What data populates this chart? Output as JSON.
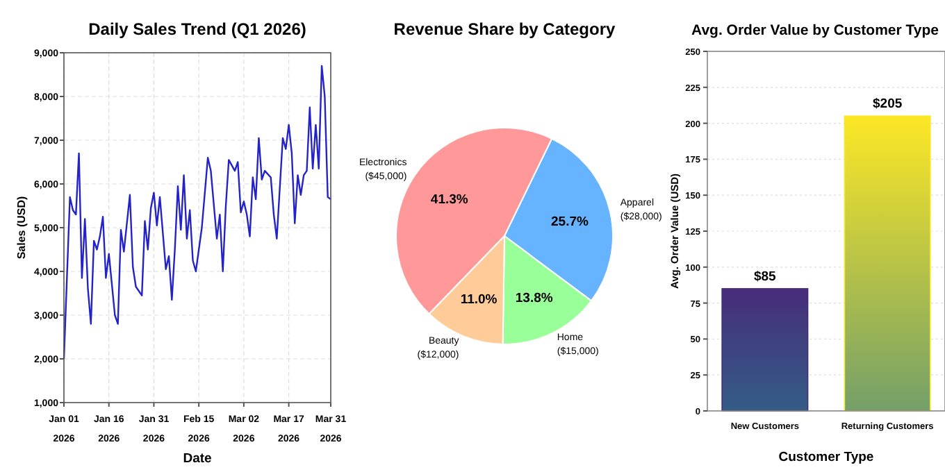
{
  "chart_data": [
    {
      "type": "line",
      "title": "Daily Sales Trend (Q1 2026)",
      "xlabel": "Date",
      "ylabel": "Sales (USD)",
      "grid": true,
      "xlim": [
        "2026-01-01",
        "2026-03-31"
      ],
      "xticks": [
        {
          "value": "2026-01-01",
          "label": "Jan 01\n2026"
        },
        {
          "value": "2026-01-16",
          "label": "Jan 16\n2026"
        },
        {
          "value": "2026-01-31",
          "label": "Jan 31\n2026"
        },
        {
          "value": "2026-02-15",
          "label": "Feb 15\n2026"
        },
        {
          "value": "2026-03-02",
          "label": "Mar 02\n2026"
        },
        {
          "value": "2026-03-17",
          "label": "Mar 17\n2026"
        },
        {
          "value": "2026-03-31",
          "label": "Mar 31\n2026"
        }
      ],
      "ylim": [
        1000,
        9000
      ],
      "yticks": [
        {
          "value": 1000,
          "label": "1,000"
        },
        {
          "value": 2000,
          "label": "2,000"
        },
        {
          "value": 3000,
          "label": "3,000"
        },
        {
          "value": 4000,
          "label": "4,000"
        },
        {
          "value": 5000,
          "label": "5,000"
        },
        {
          "value": 6000,
          "label": "6,000"
        },
        {
          "value": 7000,
          "label": "7,000"
        },
        {
          "value": 8000,
          "label": "8,000"
        },
        {
          "value": 9000,
          "label": "9,000"
        }
      ],
      "series": [
        {
          "color": "#2323c8",
          "x": [
            "2026-01-01",
            "2026-01-03",
            "2026-01-04",
            "2026-01-05",
            "2026-01-06",
            "2026-01-07",
            "2026-01-08",
            "2026-01-09",
            "2026-01-10",
            "2026-01-11",
            "2026-01-12",
            "2026-01-13",
            "2026-01-14",
            "2026-01-15",
            "2026-01-16",
            "2026-01-18",
            "2026-01-19",
            "2026-01-20",
            "2026-01-21",
            "2026-01-23",
            "2026-01-24",
            "2026-01-25",
            "2026-01-27",
            "2026-01-28",
            "2026-01-29",
            "2026-01-30",
            "2026-01-31",
            "2026-02-01",
            "2026-02-02",
            "2026-02-04",
            "2026-02-05",
            "2026-02-06",
            "2026-02-07",
            "2026-02-08",
            "2026-02-09",
            "2026-02-10",
            "2026-02-11",
            "2026-02-12",
            "2026-02-13",
            "2026-02-14",
            "2026-02-16",
            "2026-02-17",
            "2026-02-18",
            "2026-02-19",
            "2026-02-21",
            "2026-02-22",
            "2026-02-23",
            "2026-02-24",
            "2026-02-25",
            "2026-02-27",
            "2026-02-28",
            "2026-03-01",
            "2026-03-02",
            "2026-03-03",
            "2026-03-04",
            "2026-03-05",
            "2026-03-06",
            "2026-03-07",
            "2026-03-08",
            "2026-03-09",
            "2026-03-11",
            "2026-03-12",
            "2026-03-13",
            "2026-03-15",
            "2026-03-16",
            "2026-03-17",
            "2026-03-18",
            "2026-03-19",
            "2026-03-20",
            "2026-03-21",
            "2026-03-22",
            "2026-03-23",
            "2026-03-24",
            "2026-03-25",
            "2026-03-26",
            "2026-03-27",
            "2026-03-28",
            "2026-03-29",
            "2026-03-30",
            "2026-03-31"
          ],
          "values": [
            2000,
            5700,
            5400,
            5300,
            6700,
            3850,
            5200,
            3600,
            2800,
            4700,
            4500,
            4800,
            5250,
            3850,
            4400,
            3000,
            2800,
            4950,
            4450,
            5750,
            4100,
            3650,
            3450,
            5150,
            4500,
            5450,
            5800,
            5050,
            5700,
            4050,
            4350,
            3350,
            4500,
            5950,
            4950,
            6200,
            4750,
            5400,
            4250,
            4000,
            5000,
            5800,
            6600,
            6300,
            4750,
            5300,
            4000,
            5500,
            6550,
            6300,
            6500,
            5350,
            5600,
            5300,
            4800,
            6150,
            5650,
            7050,
            6100,
            6300,
            6150,
            5300,
            4750,
            7050,
            6800,
            7350,
            6700,
            5100,
            6200,
            5750,
            6200,
            6300,
            7750,
            6350,
            7350,
            6350,
            8700,
            8000,
            5700,
            5650
          ]
        }
      ]
    },
    {
      "type": "pie",
      "title": "Revenue Share by Category",
      "categories": [
        "Electronics\n($45,000)",
        "Apparel\n($28,000)",
        "Home\n($15,000)",
        "Beauty\n($12,000)"
      ],
      "values": [
        41.3,
        25.7,
        13.8,
        11.0
      ],
      "value_labels": [
        "41.3%",
        "25.7%",
        "13.8%",
        "11.0%"
      ],
      "colors": [
        "#ff9999",
        "#66b3ff",
        "#99ff99",
        "#ffcc99"
      ]
    },
    {
      "type": "bar",
      "title": "Avg. Order Value by Customer Type",
      "xlabel": "Customer Type",
      "ylabel": "Avg. Order Value (USD)",
      "grid": "y",
      "categories": [
        "New Customers",
        "Returning Customers"
      ],
      "values": [
        85,
        205
      ],
      "value_labels": [
        "$85",
        "$205"
      ],
      "colors": [
        "#472c7a",
        "#fde725"
      ],
      "ylim": [
        0,
        250
      ],
      "yticks": [
        0,
        25,
        50,
        75,
        100,
        125,
        150,
        175,
        200,
        225,
        250
      ]
    }
  ]
}
